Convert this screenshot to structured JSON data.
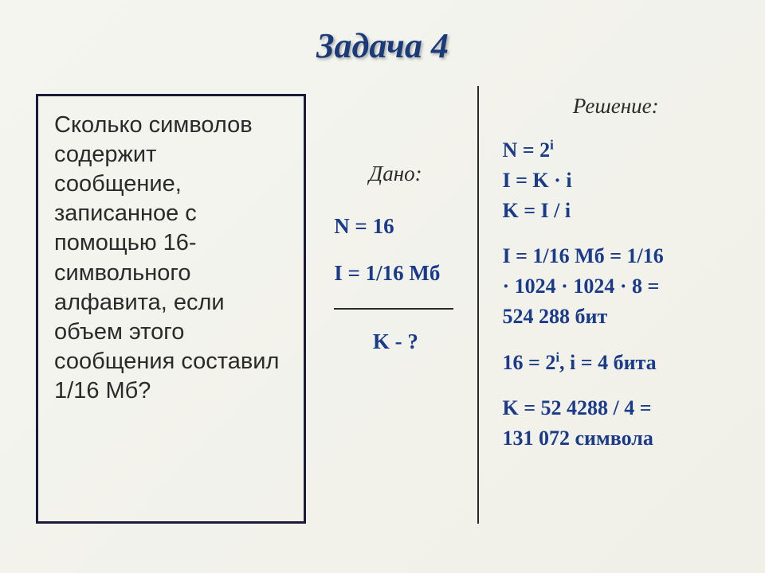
{
  "title": "Задача 4",
  "problem": "Сколько символов содержит сообщение, записанное с помощью 16-символьного алфавита, если объем этого сообщения составил 1/16 Мб?",
  "given": {
    "label": "Дано:",
    "n": "N = 16",
    "i": "I = 1/16 Мб",
    "find": "K - ?"
  },
  "solution": {
    "label": "Решение:",
    "formula1": "N = 2",
    "formula1_sup": "i",
    "formula2": "I = K · i",
    "formula3": "K = I / i",
    "calc1a": "I = 1/16 Мб = 1/16",
    "calc1b": "· 1024 · 1024 · 8 =",
    "calc1c": "524 288 бит",
    "calc2a": "16 = 2",
    "calc2a_sup": "i",
    "calc2b": ", i = 4 бита",
    "calc3a": "K = 52 4288 / 4 =",
    "calc3b": "131 072 символа"
  },
  "colors": {
    "title_color": "#1a3a7a",
    "text_color": "#2a2a2a",
    "formula_color": "#1a3a8a",
    "border_color": "#1a1a3a",
    "background": "#f5f5f0"
  }
}
